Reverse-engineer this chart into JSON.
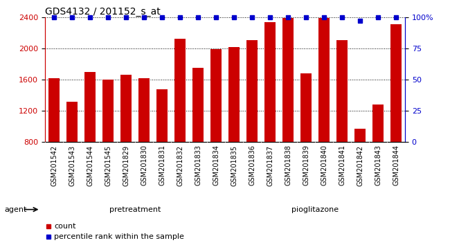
{
  "title": "GDS4132 / 201152_s_at",
  "samples": [
    "GSM201542",
    "GSM201543",
    "GSM201544",
    "GSM201545",
    "GSM201829",
    "GSM201830",
    "GSM201831",
    "GSM201832",
    "GSM201833",
    "GSM201834",
    "GSM201835",
    "GSM201836",
    "GSM201837",
    "GSM201838",
    "GSM201839",
    "GSM201840",
    "GSM201841",
    "GSM201842",
    "GSM201843",
    "GSM201844"
  ],
  "counts": [
    1620,
    1320,
    1700,
    1600,
    1660,
    1620,
    1480,
    2120,
    1750,
    1990,
    2020,
    2110,
    2340,
    2390,
    1680,
    2390,
    2110,
    970,
    1280,
    2310
  ],
  "percentiles": [
    100,
    100,
    100,
    100,
    100,
    100,
    100,
    100,
    100,
    100,
    100,
    100,
    100,
    100,
    100,
    100,
    100,
    97,
    100,
    100
  ],
  "pretreatment_count": 10,
  "pioglitazone_count": 10,
  "ymin": 800,
  "ymax": 2400,
  "yticks_left": [
    800,
    1200,
    1600,
    2000,
    2400
  ],
  "yticks_right": [
    0,
    25,
    50,
    75,
    100
  ],
  "bar_color": "#cc0000",
  "dot_color": "#0000cc",
  "pretreatment_color": "#88ee88",
  "pioglitazone_color": "#55cc55",
  "xlabel_bg_color": "#cccccc",
  "agent_label": "agent",
  "pretreatment_label": "pretreatment",
  "pioglitazone_label": "pioglitazone",
  "legend_count_label": "count",
  "legend_pct_label": "percentile rank within the sample",
  "title_fontsize": 10,
  "tick_label_fontsize": 7,
  "bar_width": 0.65
}
